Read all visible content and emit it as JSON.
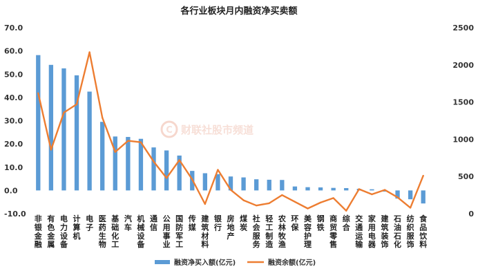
{
  "chart_data": {
    "type": "bar",
    "title": "各行业板块月内融资净买卖额",
    "categories": [
      "非银金融",
      "有色金属",
      "电力设备",
      "计算机",
      "电子",
      "医药生物",
      "基础化工",
      "汽车",
      "机械设备",
      "通信",
      "公用事业",
      "国防军工",
      "传媒",
      "建筑材料",
      "银行",
      "房地产",
      "煤炭",
      "社会服务",
      "轻工制造",
      "农林牧渔",
      "环保",
      "美容护理",
      "钢铁",
      "商贸零售",
      "综合",
      "交通运输",
      "家用电器",
      "建筑装饰",
      "石油石化",
      "纺织服饰",
      "食品饮料"
    ],
    "series": [
      {
        "name": "融资净买入额(亿元)",
        "axis": "left",
        "type": "bar",
        "color": "#5b9bd5",
        "values": [
          58.2,
          54.0,
          52.5,
          49.5,
          42.5,
          29.5,
          23.2,
          23.0,
          22.2,
          18.5,
          17.2,
          15.0,
          8.4,
          7.4,
          7.0,
          6.0,
          5.6,
          4.8,
          4.6,
          4.5,
          1.7,
          1.4,
          1.3,
          1.1,
          1.0,
          0.7,
          0.5,
          -0.5,
          -3.5,
          -3.8,
          -5.6
        ]
      },
      {
        "name": "融资余额(亿元)",
        "axis": "right",
        "type": "line",
        "color": "#ed7d31",
        "values": [
          1620,
          860,
          1360,
          1470,
          2170,
          1290,
          830,
          980,
          960,
          700,
          480,
          720,
          460,
          130,
          590,
          320,
          180,
          110,
          140,
          250,
          160,
          70,
          150,
          210,
          40,
          330,
          260,
          320,
          220,
          80,
          510
        ]
      }
    ],
    "left_axis": {
      "ylim": [
        -10,
        70
      ],
      "ticks": [
        "-10.0",
        "0.0",
        "10.0",
        "20.0",
        "30.0",
        "40.0",
        "50.0",
        "60.0",
        "70.0"
      ]
    },
    "right_axis": {
      "ylim": [
        0,
        2500
      ],
      "ticks": [
        "0",
        "500",
        "1000",
        "1500",
        "2000",
        "2500"
      ]
    },
    "legend_position": "bottom",
    "grid": false
  },
  "watermark": {
    "text": "财联社股市频道",
    "badge": "C"
  }
}
